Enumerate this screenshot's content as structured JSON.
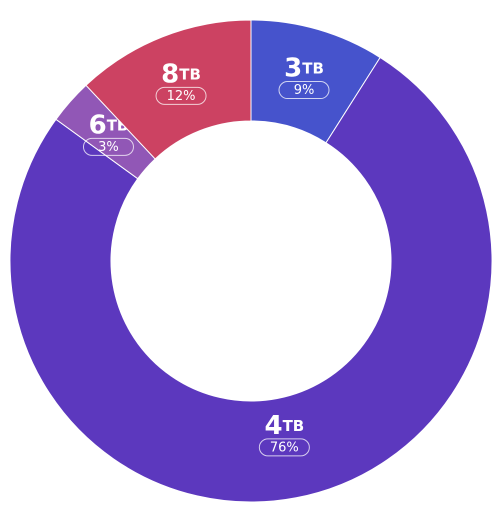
{
  "chart_data": {
    "type": "donut",
    "unit": "TB",
    "categories": [
      "3",
      "4",
      "6",
      "8"
    ],
    "values": [
      9,
      76,
      3,
      12
    ],
    "value_labels": [
      "9%",
      "76%",
      "3%",
      "12%"
    ],
    "colors": [
      "#4653cc",
      "#5c38be",
      "#9157b6",
      "#cc4262"
    ]
  }
}
